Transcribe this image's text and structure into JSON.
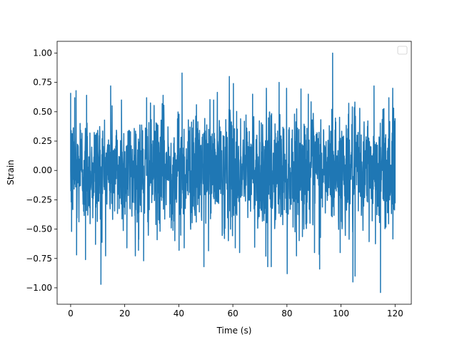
{
  "chart_data": {
    "type": "line",
    "title": "",
    "xlabel": "Time (s)",
    "ylabel": "Strain",
    "xlim": [
      -5,
      126
    ],
    "ylim": [
      -1.14,
      1.1
    ],
    "x_ticks": [
      0,
      20,
      40,
      60,
      80,
      100,
      120
    ],
    "x_tick_labels": [
      "0",
      "20",
      "40",
      "60",
      "80",
      "100",
      "120"
    ],
    "y_ticks": [
      -1.0,
      -0.75,
      -0.5,
      -0.25,
      0.0,
      0.25,
      0.5,
      0.75,
      1.0
    ],
    "y_tick_labels": [
      "−1.00",
      "−0.75",
      "−0.50",
      "−0.25",
      "0.00",
      "0.25",
      "0.50",
      "0.75",
      "1.00"
    ],
    "grid": false,
    "legend": {
      "placement": "top-right",
      "entries": []
    },
    "series": [
      {
        "color": "#1f77b4",
        "x_range": [
          0,
          120
        ],
        "y_range": [
          -1.04,
          1.0
        ],
        "typical_amplitude": 0.5,
        "points": [
          [
            0,
            0.0
          ],
          [
            0.2,
            0.34
          ],
          [
            0.35,
            -0.52
          ],
          [
            0.8,
            0.18
          ],
          [
            1.5,
            0.62
          ],
          [
            2.0,
            0.68
          ],
          [
            2.2,
            -0.72
          ],
          [
            3.5,
            0.4
          ],
          [
            5.5,
            -0.76
          ],
          [
            5.9,
            0.64
          ],
          [
            9.2,
            -0.63
          ],
          [
            11.2,
            -0.97
          ],
          [
            14.8,
            0.72
          ],
          [
            18.8,
            0.6
          ],
          [
            20.8,
            -0.66
          ],
          [
            24.6,
            -0.44
          ],
          [
            25.1,
            -0.68
          ],
          [
            27.0,
            -0.77
          ],
          [
            28.1,
            0.62
          ],
          [
            34.2,
            0.64
          ],
          [
            40.1,
            -0.68
          ],
          [
            41.2,
            0.83
          ],
          [
            42.0,
            -0.66
          ],
          [
            45.4,
            0.43
          ],
          [
            49.3,
            -0.82
          ],
          [
            52.9,
            0.6
          ],
          [
            56.9,
            -0.58
          ],
          [
            58.7,
            0.8
          ],
          [
            60.2,
            0.74
          ],
          [
            60.9,
            -0.66
          ],
          [
            62.5,
            -0.7
          ],
          [
            67.3,
            0.65
          ],
          [
            72.2,
            -0.73
          ],
          [
            72.9,
            -0.82
          ],
          [
            74.2,
            -0.82
          ],
          [
            77.1,
            0.75
          ],
          [
            80.1,
            -0.88
          ],
          [
            82.8,
            0.48
          ],
          [
            87.9,
            0.65
          ],
          [
            90.2,
            -0.7
          ],
          [
            92.1,
            -0.84
          ],
          [
            96.9,
            1.0
          ],
          [
            99.7,
            -0.7
          ],
          [
            104.4,
            -0.95
          ],
          [
            105.2,
            -0.9
          ],
          [
            112.2,
            0.72
          ],
          [
            114.6,
            -1.04
          ],
          [
            115.5,
            0.52
          ],
          [
            117.7,
            0.62
          ],
          [
            119.8,
            0.42
          ],
          [
            120.0,
            -0.28
          ]
        ]
      }
    ]
  }
}
